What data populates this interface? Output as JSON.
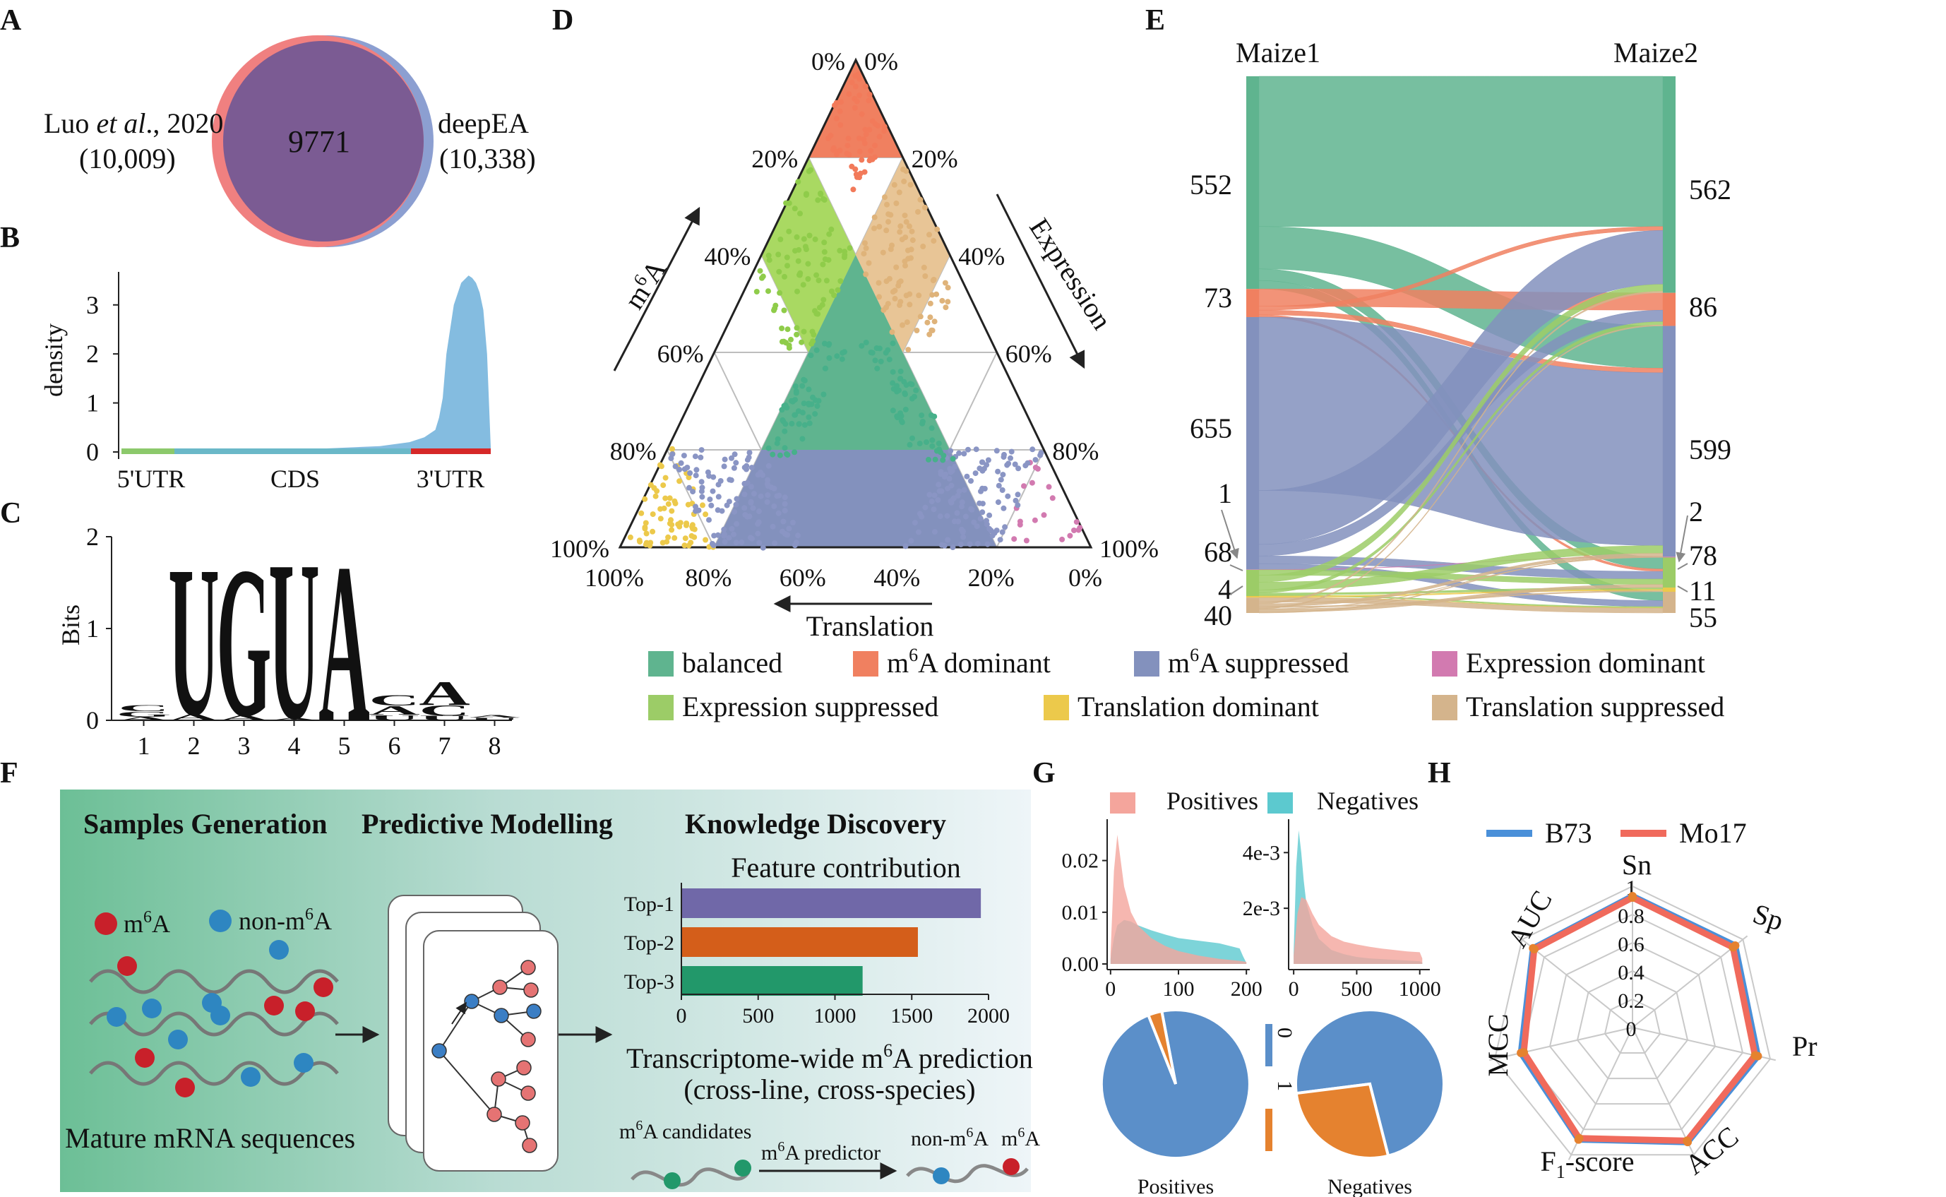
{
  "panel_letters": {
    "A": "A",
    "B": "B",
    "C": "C",
    "D": "D",
    "E": "E",
    "F": "F",
    "G": "G",
    "H": "H"
  },
  "colors": {
    "balanced": "#5fb48f",
    "m6a_dominant": "#f08060",
    "m6a_suppressed": "#8391bd",
    "expression_dominant": "#d27ab0",
    "expression_suppressed": "#9ccc67",
    "translation_dominant": "#ecc94b",
    "translation_suppressed": "#d4b48c",
    "luo": "#f08080",
    "deepea": "#8c9fd1",
    "venn_overlap": "#7b5b93",
    "density_fill": "#84bce0",
    "positives": "#f4a59c",
    "negatives": "#5cc9cf",
    "pie_blue": "#5b8fc9",
    "pie_orange": "#e5822f",
    "b73": "#4a90d9",
    "mo17": "#f06a5c",
    "bar_top1": "#7068a8",
    "bar_top2": "#d45e1a",
    "bar_top3": "#22986a"
  },
  "venn": {
    "left_name": "Luo ",
    "left_italic": "et al",
    "left_year": "., 2020",
    "left_count": "(10,009)",
    "right_name": "deepEA",
    "right_count": "(10,338)",
    "overlap": "9771"
  },
  "density_chart": {
    "chart_data": {
      "type": "area",
      "ylabel": "density",
      "yticks": [
        "0",
        "1",
        "2",
        "3"
      ],
      "ylim": [
        0,
        3.6
      ],
      "regions": [
        "5'UTR",
        "CDS",
        "3'UTR"
      ],
      "x": [
        0,
        0.15,
        0.35,
        0.55,
        0.7,
        0.78,
        0.82,
        0.85,
        0.86,
        0.87,
        0.88,
        0.9,
        0.92,
        0.94,
        0.95,
        0.96,
        0.97,
        0.98,
        0.99,
        1.0
      ],
      "y": [
        0.04,
        0.04,
        0.05,
        0.07,
        0.12,
        0.2,
        0.3,
        0.45,
        0.7,
        1.1,
        2.0,
        3.0,
        3.45,
        3.6,
        3.55,
        3.45,
        3.25,
        2.9,
        2.0,
        0.1
      ]
    }
  },
  "motif": {
    "chart_data": {
      "type": "sequence-logo",
      "ylabel": "Bits",
      "yticks": [
        "0",
        "1",
        "2"
      ],
      "ylim": [
        0,
        2
      ],
      "positions": [
        "1",
        "2",
        "3",
        "4",
        "5",
        "6",
        "7",
        "8"
      ],
      "letters": [
        [
          {
            "base": "A",
            "bits": 0.04
          },
          {
            "base": "G",
            "bits": 0.06
          },
          {
            "base": "C",
            "bits": 0.07
          }
        ],
        [
          {
            "base": "A",
            "bits": 0.07
          },
          {
            "base": "U",
            "bits": 1.7
          }
        ],
        [
          {
            "base": "A",
            "bits": 0.06
          },
          {
            "base": "G",
            "bits": 1.7
          }
        ],
        [
          {
            "base": "A",
            "bits": 0.03
          },
          {
            "base": "U",
            "bits": 1.8
          }
        ],
        [
          {
            "base": "A",
            "bits": 1.8
          }
        ],
        [
          {
            "base": "U",
            "bits": 0.06
          },
          {
            "base": "A",
            "bits": 0.1
          },
          {
            "base": "C",
            "bits": 0.12
          }
        ],
        [
          {
            "base": "U",
            "bits": 0.05
          },
          {
            "base": "C",
            "bits": 0.12
          },
          {
            "base": "A",
            "bits": 0.27
          }
        ],
        [
          {
            "base": "U",
            "bits": 0.03
          },
          {
            "base": "A",
            "bits": 0.03
          }
        ]
      ]
    }
  },
  "ternary": {
    "axis_m6a": "m",
    "axis_m6a_sup": "6",
    "axis_m6a_end": "A",
    "axis_expression": "Expression",
    "axis_translation": "Translation",
    "left_ticks": [
      "0%",
      "20%",
      "40%",
      "60%",
      "80%",
      "100%"
    ],
    "right_ticks": [
      "0%",
      "20%",
      "40%",
      "60%",
      "80%",
      "100%"
    ],
    "bottom_ticks": [
      "100%",
      "80%",
      "60%",
      "40%",
      "20%",
      "0%"
    ]
  },
  "sankey": {
    "left_title": "Maize1",
    "right_title": "Maize2",
    "left_values": [
      "552",
      "73",
      "655",
      "1",
      "68",
      "4",
      "40"
    ],
    "right_values": [
      "562",
      "86",
      "599",
      "2",
      "78",
      "11",
      "55"
    ]
  },
  "legend": [
    {
      "key": "balanced",
      "label": "balanced"
    },
    {
      "key": "m6a_dominant",
      "label_pre": "m",
      "label_sup": "6",
      "label_post": "A dominant"
    },
    {
      "key": "m6a_suppressed",
      "label_pre": "m",
      "label_sup": "6",
      "label_post": "A suppressed"
    },
    {
      "key": "expression_dominant",
      "label": "Expression dominant"
    },
    {
      "key": "expression_suppressed",
      "label": "Expression suppressed"
    },
    {
      "key": "translation_dominant",
      "label": "Translation dominant"
    },
    {
      "key": "translation_suppressed",
      "label": "Translation suppressed"
    }
  ],
  "workflow": {
    "step1": "Samples Generation",
    "step2": "Predictive Modelling",
    "step3": "Knowledge Discovery",
    "m6a_pre": "m",
    "m6a_sup": "6",
    "m6a_post": "A",
    "non_pre": "non-m",
    "non_sup": "6",
    "non_post": "A",
    "mature": "Mature mRNA sequences",
    "feature_title": "Feature contribution",
    "transcriptome_pre": "Transcriptome-wide m",
    "transcriptome_sup": "6",
    "transcriptome_post": "A prediction",
    "transcriptome_sub": "(cross-line, cross-species)",
    "cand_pre": "m",
    "cand_sup": "6",
    "cand_post": "A candidates",
    "pred_pre": "m",
    "pred_sup": "6",
    "pred_post": "A predictor",
    "out_non_pre": "non-m",
    "out_non_sup": "6",
    "out_non_post": "A",
    "out_m_pre": "m",
    "out_m_sup": "6",
    "out_m_post": "A"
  },
  "feature_chart": {
    "chart_data": {
      "type": "bar",
      "categories": [
        "Top-1",
        "Top-2",
        "Top-3"
      ],
      "values": [
        1950,
        1540,
        1180
      ],
      "xlim": [
        0,
        2000
      ],
      "xticks": [
        "0",
        "500",
        "1000",
        "1500",
        "2000"
      ]
    }
  },
  "distribution": {
    "legend_pos": "Positives",
    "legend_neg": "Negatives",
    "left_chart": {
      "chart_data": {
        "type": "area",
        "yticks": [
          "0.00",
          "0.01",
          "0.02"
        ],
        "xticks": [
          "0",
          "100",
          "200"
        ],
        "xlim": [
          -5,
          205
        ],
        "ylim": [
          0,
          0.028
        ],
        "series": [
          {
            "name": "Positives",
            "x": [
              0,
              5,
              10,
              15,
              20,
              30,
              40,
              60,
              80,
              100,
              130,
              160,
              190,
              200
            ],
            "y": [
              0.002,
              0.018,
              0.025,
              0.02,
              0.015,
              0.01,
              0.0075,
              0.005,
              0.0035,
              0.0025,
              0.0016,
              0.001,
              0.0006,
              0.0004
            ]
          },
          {
            "name": "Negatives",
            "x": [
              0,
              5,
              10,
              20,
              30,
              40,
              60,
              80,
              100,
              130,
              160,
              190,
              195,
              200
            ],
            "y": [
              0.001,
              0.005,
              0.0075,
              0.0085,
              0.0082,
              0.0075,
              0.0065,
              0.0057,
              0.005,
              0.0045,
              0.004,
              0.003,
              0.0015,
              0.0002
            ]
          }
        ]
      }
    },
    "right_chart": {
      "chart_data": {
        "type": "area",
        "yticks": [
          "2e-3",
          "4e-3"
        ],
        "xticks": [
          "0",
          "500",
          "1000"
        ],
        "xlim": [
          -40,
          1080
        ],
        "ylim": [
          0,
          0.0052
        ],
        "series": [
          {
            "name": "Positives",
            "x": [
              0,
              30,
              60,
              100,
              150,
              200,
              300,
              400,
              500,
              600,
              700,
              800,
              900,
              1000,
              1020
            ],
            "y": [
              0.0003,
              0.0018,
              0.0024,
              0.0023,
              0.0018,
              0.0014,
              0.001,
              0.0008,
              0.0007,
              0.00062,
              0.00055,
              0.0005,
              0.00045,
              0.00042,
              0.0002
            ]
          },
          {
            "name": "Negatives",
            "x": [
              0,
              20,
              40,
              60,
              80,
              100,
              150,
              200,
              300,
              400,
              500,
              600,
              800,
              1000,
              1020
            ],
            "y": [
              0.0004,
              0.0035,
              0.0048,
              0.004,
              0.003,
              0.0022,
              0.0014,
              0.0009,
              0.0005,
              0.00035,
              0.00025,
              0.0002,
              0.00015,
              0.0001,
              5e-05
            ]
          }
        ]
      }
    },
    "pie_legend": [
      "0",
      "1"
    ],
    "pies": {
      "chart_data": [
        {
          "type": "pie",
          "label": "Positives",
          "categories": [
            "0",
            "1"
          ],
          "values": [
            97,
            3
          ]
        },
        {
          "type": "pie",
          "label": "Negatives",
          "categories": [
            "0",
            "1"
          ],
          "values": [
            73,
            27
          ]
        }
      ]
    }
  },
  "radar": {
    "legend": [
      "B73",
      "Mo17"
    ],
    "chart_data": {
      "type": "radar",
      "axes": [
        "Sn",
        "Sp",
        "Pr",
        "ACC",
        "F1-score",
        "MCC",
        "AUC"
      ],
      "axis_labels": {
        "Sn": "Sn",
        "Sp": "Sp",
        "Pr": "Pr",
        "ACC": "ACC",
        "F1_pre": "F",
        "F1_sub": "1",
        "F1_post": "-score",
        "MCC": "MCC",
        "AUC": "AUC"
      },
      "rticks": [
        "0",
        "0.2",
        "0.4",
        "0.6",
        "0.8",
        "1"
      ],
      "series": [
        {
          "name": "B73",
          "values": [
            0.93,
            0.93,
            0.91,
            0.9,
            0.88,
            0.81,
            0.9
          ]
        },
        {
          "name": "Mo17",
          "values": [
            0.92,
            0.91,
            0.89,
            0.89,
            0.87,
            0.79,
            0.89
          ]
        }
      ]
    }
  }
}
